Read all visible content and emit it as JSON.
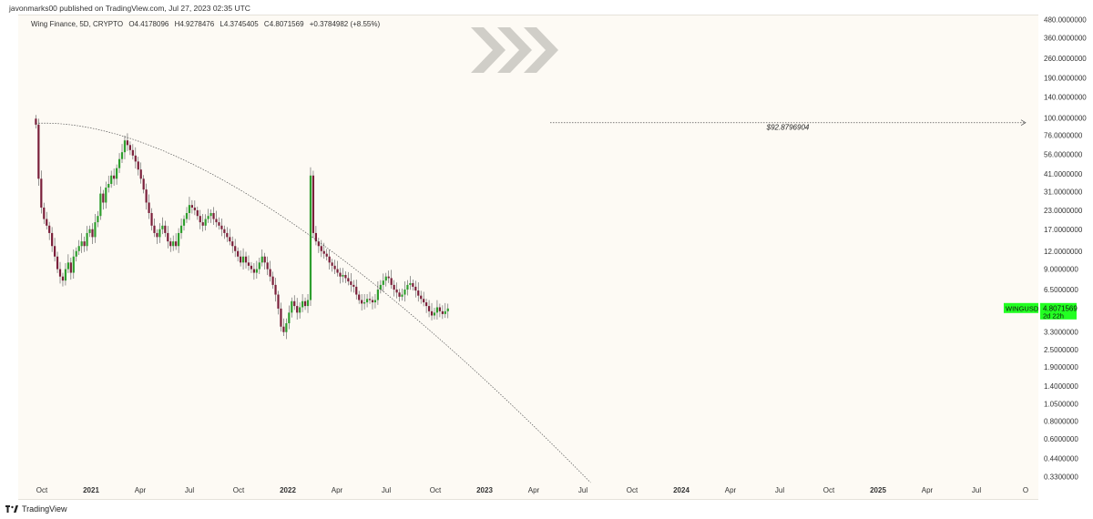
{
  "header": {
    "publish_info": "javonmarks00 published on TradingView.com, Jul 27, 2023 02:35 UTC"
  },
  "symbol": {
    "name": "Wing Finance, 5D, CRYPTO",
    "open": "O4.4178096",
    "high": "H4.9278476",
    "low": "L4.3745405",
    "close": "C4.8071569",
    "change": "+0.3784982 (+8.55%)"
  },
  "price_badge": {
    "ticker": "WINGUSD",
    "price": "4.8071569",
    "countdown": "2d 22h",
    "color": "#22ff22"
  },
  "target_label": "$92.8796904",
  "footer": {
    "brand": "TradingView"
  },
  "chart_data": {
    "type": "candlestick",
    "y_scale": "log",
    "ylim": [
      0.3,
      520
    ],
    "y_ticks": [
      {
        "value": 480,
        "label": "480.0000000"
      },
      {
        "value": 360,
        "label": "360.0000000"
      },
      {
        "value": 260,
        "label": "260.0000000"
      },
      {
        "value": 190,
        "label": "190.0000000"
      },
      {
        "value": 140,
        "label": "140.0000000"
      },
      {
        "value": 100,
        "label": "100.0000000"
      },
      {
        "value": 76,
        "label": "76.0000000"
      },
      {
        "value": 56,
        "label": "56.0000000"
      },
      {
        "value": 41,
        "label": "41.0000000"
      },
      {
        "value": 31,
        "label": "31.0000000"
      },
      {
        "value": 23,
        "label": "23.0000000"
      },
      {
        "value": 17,
        "label": "17.0000000"
      },
      {
        "value": 12,
        "label": "12.0000000"
      },
      {
        "value": 9,
        "label": "9.0000000"
      },
      {
        "value": 6.5,
        "label": "6.5000000"
      },
      {
        "value": 4.8071569,
        "label": ""
      },
      {
        "value": 3.3,
        "label": "3.3000000"
      },
      {
        "value": 2.5,
        "label": "2.5000000"
      },
      {
        "value": 1.9,
        "label": "1.9000000"
      },
      {
        "value": 1.4,
        "label": "1.4000000"
      },
      {
        "value": 1.05,
        "label": "1.0500000"
      },
      {
        "value": 0.8,
        "label": "0.8000000"
      },
      {
        "value": 0.6,
        "label": "0.6000000"
      },
      {
        "value": 0.44,
        "label": "0.4400000"
      },
      {
        "value": 0.33,
        "label": "0.3300000"
      }
    ],
    "x_ticks": [
      "Oct",
      "2021",
      "Apr",
      "Jul",
      "Oct",
      "2022",
      "Apr",
      "Jul",
      "Oct",
      "2023",
      "Apr",
      "Jul",
      "Oct",
      "2024",
      "Apr",
      "Jul",
      "Oct",
      "2025",
      "Apr",
      "Jul",
      "O"
    ],
    "x_tick_start": "2020-10",
    "x_tick_step_months": 3,
    "bold_ticks": [
      "2021",
      "2022",
      "2023",
      "2024",
      "2025"
    ],
    "first_candle": "2020-09-20",
    "candle_period_days": 5,
    "closes": [
      90,
      38,
      24,
      20,
      18,
      16,
      13,
      11,
      9,
      8,
      7.5,
      9,
      10,
      8.5,
      11,
      12,
      13,
      14,
      13,
      16,
      17,
      15,
      19,
      21,
      30,
      26,
      33,
      35,
      40,
      38,
      45,
      52,
      58,
      70,
      65,
      60,
      55,
      50,
      44,
      38,
      32,
      26,
      22,
      18,
      16,
      15,
      17,
      18,
      16,
      14,
      13,
      14,
      13,
      16,
      18,
      20,
      22,
      25,
      24,
      23,
      21,
      19,
      18,
      20,
      21,
      22,
      20,
      19,
      18,
      17,
      16,
      15,
      14,
      13,
      12,
      11,
      10,
      11,
      10,
      9.5,
      9,
      8.5,
      9,
      10,
      11,
      10,
      9,
      8,
      7,
      6,
      4.8,
      3.6,
      3.3,
      3.8,
      4.5,
      5.4,
      5.0,
      4.5,
      4.9,
      5.4,
      5.0,
      5.5,
      40,
      16,
      14,
      13,
      12,
      11.5,
      11,
      10,
      9.5,
      9,
      8.5,
      8.0,
      8.2,
      7.8,
      7.4,
      7.0,
      6.8,
      6.0,
      5.5,
      5.2,
      5.3,
      5.6,
      5.5,
      5.3,
      5.5,
      6.5,
      7.0,
      7.5,
      8.0,
      7.8,
      7.0,
      6.5,
      6.2,
      5.8,
      6.0,
      6.5,
      7.0,
      7.2,
      6.8,
      6.4,
      5.9,
      5.6,
      5.3,
      5.0,
      4.6,
      4.3,
      4.5,
      4.9,
      4.6,
      4.4,
      4.6,
      4.8071569
    ],
    "annotations": [
      {
        "type": "dotted-curve",
        "from": {
          "date": "2020-09-20",
          "value": 92
        },
        "to": {
          "date": "2023-07-15",
          "value": 0.3
        }
      },
      {
        "type": "dotted-arrow",
        "value": 92.8796904,
        "from": "2023-05-01",
        "to": "2025-10-01",
        "label": "$92.8796904"
      }
    ]
  }
}
